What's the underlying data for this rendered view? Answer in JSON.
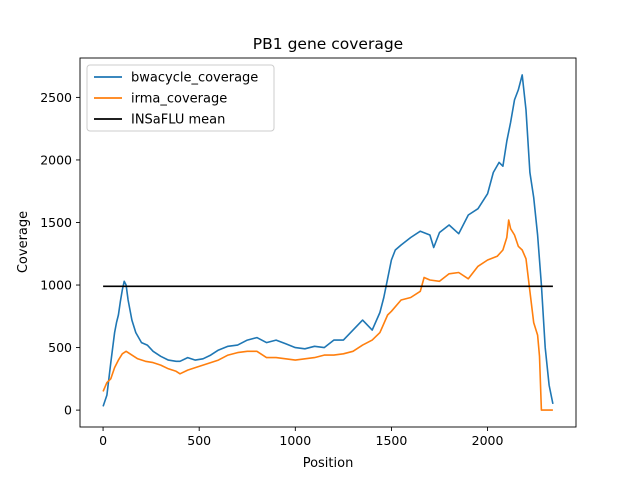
{
  "chart_data": {
    "type": "line",
    "title": "PB1 gene coverage",
    "xlabel": "Position",
    "ylabel": "Coverage",
    "xlim": [
      -120,
      2460
    ],
    "ylim": [
      -135,
      2815
    ],
    "xticks": [
      0,
      500,
      1000,
      1500,
      2000
    ],
    "yticks": [
      0,
      500,
      1000,
      1500,
      2000,
      2500
    ],
    "grid": false,
    "legend_position": "top-left",
    "series": [
      {
        "name": "bwacycle_coverage",
        "color": "#1f77b4",
        "x": [
          0,
          20,
          40,
          60,
          70,
          80,
          90,
          100,
          110,
          120,
          130,
          150,
          170,
          200,
          230,
          260,
          300,
          340,
          380,
          400,
          440,
          480,
          520,
          560,
          600,
          650,
          700,
          750,
          800,
          850,
          900,
          950,
          1000,
          1050,
          1100,
          1150,
          1200,
          1250,
          1300,
          1350,
          1400,
          1440,
          1460,
          1480,
          1500,
          1520,
          1550,
          1600,
          1650,
          1700,
          1720,
          1750,
          1800,
          1850,
          1900,
          1950,
          2000,
          2030,
          2060,
          2080,
          2100,
          2120,
          2140,
          2160,
          2180,
          2200,
          2220,
          2240,
          2260,
          2280,
          2300,
          2320,
          2340
        ],
        "values": [
          30,
          120,
          380,
          620,
          700,
          760,
          870,
          960,
          1030,
          1000,
          880,
          720,
          620,
          540,
          520,
          470,
          430,
          400,
          390,
          390,
          420,
          400,
          410,
          440,
          480,
          510,
          520,
          560,
          580,
          540,
          560,
          530,
          500,
          490,
          510,
          500,
          560,
          560,
          640,
          720,
          640,
          780,
          900,
          1050,
          1200,
          1280,
          1320,
          1380,
          1430,
          1400,
          1300,
          1420,
          1480,
          1410,
          1560,
          1610,
          1730,
          1900,
          1980,
          1950,
          2150,
          2300,
          2480,
          2560,
          2680,
          2400,
          1900,
          1700,
          1400,
          1000,
          500,
          200,
          50
        ]
      },
      {
        "name": "irma_coverage",
        "color": "#ff7f0e",
        "x": [
          0,
          20,
          40,
          60,
          80,
          100,
          120,
          150,
          180,
          220,
          260,
          300,
          340,
          380,
          400,
          440,
          480,
          520,
          560,
          600,
          650,
          700,
          750,
          800,
          850,
          900,
          950,
          1000,
          1050,
          1100,
          1150,
          1200,
          1250,
          1300,
          1350,
          1400,
          1440,
          1480,
          1500,
          1550,
          1600,
          1650,
          1670,
          1700,
          1750,
          1800,
          1850,
          1900,
          1950,
          2000,
          2050,
          2080,
          2100,
          2110,
          2120,
          2140,
          2160,
          2180,
          2200,
          2220,
          2240,
          2260,
          2270,
          2280,
          2300,
          2340
        ],
        "values": [
          150,
          220,
          250,
          340,
          400,
          450,
          470,
          440,
          410,
          390,
          380,
          360,
          330,
          310,
          290,
          320,
          340,
          360,
          380,
          400,
          440,
          460,
          470,
          470,
          420,
          420,
          410,
          400,
          410,
          420,
          440,
          440,
          450,
          470,
          520,
          560,
          620,
          760,
          790,
          880,
          900,
          950,
          1060,
          1040,
          1030,
          1090,
          1100,
          1050,
          1150,
          1200,
          1230,
          1280,
          1380,
          1520,
          1450,
          1400,
          1310,
          1280,
          1210,
          950,
          700,
          600,
          430,
          0,
          0,
          0
        ]
      },
      {
        "name": "INSaFLU mean",
        "color": "#000000",
        "x": [
          0,
          2340
        ],
        "values": [
          990,
          990
        ]
      }
    ]
  }
}
